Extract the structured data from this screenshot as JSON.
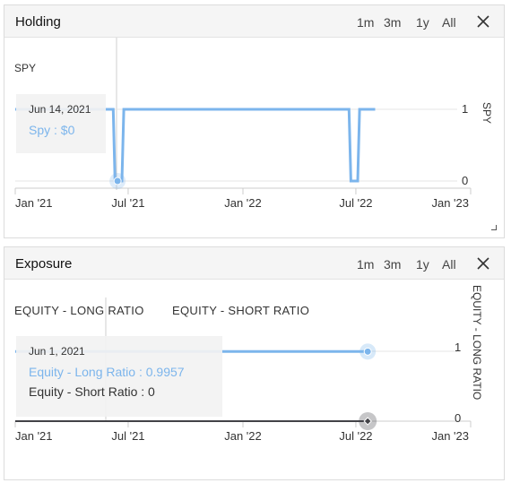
{
  "holding": {
    "title": "Holding",
    "ranges": [
      "1m",
      "3m",
      "1y",
      "All"
    ],
    "series_label": "SPY",
    "y_axis_title": "SPY",
    "tooltip": {
      "date": "Jun 14, 2021",
      "line": "Spy : $0"
    },
    "colors": {
      "series": "#7cb5ec"
    }
  },
  "exposure": {
    "title": "Exposure",
    "ranges": [
      "1m",
      "3m",
      "1y",
      "All"
    ],
    "legend": [
      "EQUITY - LONG RATIO",
      "EQUITY - SHORT RATIO"
    ],
    "y_axis_title": "EQUITY - LONG RATIO",
    "tooltip": {
      "date": "Jun 1, 2021",
      "lines": [
        "Equity - Long Ratio : 0.9957",
        "Equity - Short Ratio : 0"
      ]
    },
    "colors": {
      "long": "#7cb5ec",
      "short": "#434348"
    }
  },
  "chart_data": [
    {
      "type": "line",
      "x_tick_labels": [
        "Jan '21",
        "Jul '21",
        "Jan '22",
        "Jul '22",
        "Jan '23"
      ],
      "x_ticks": [
        "2021-01-01",
        "2021-07-01",
        "2022-01-01",
        "2022-07-01",
        "2023-01-01"
      ],
      "xlim": [
        "2021-01-01",
        "2023-01-01"
      ],
      "y_tick_labels": [
        "0",
        "1"
      ],
      "ylim": [
        0,
        1
      ],
      "series": [
        {
          "name": "SPY",
          "x": [
            "2021-01-01",
            "2021-06-07",
            "2021-06-10",
            "2021-06-14",
            "2021-06-21",
            "2021-06-24",
            "2022-06-20",
            "2022-06-23",
            "2022-07-04",
            "2022-07-07",
            "2022-08-01"
          ],
          "values": [
            1,
            1,
            0,
            0,
            0,
            1,
            1,
            0,
            0,
            1,
            1
          ]
        }
      ],
      "highlight": {
        "x": "2021-06-14",
        "y": 0
      }
    },
    {
      "type": "line",
      "x_tick_labels": [
        "Jan '21",
        "Jul '21",
        "Jan '22",
        "Jul '22",
        "Jan '23"
      ],
      "x_ticks": [
        "2021-01-01",
        "2021-07-01",
        "2022-01-01",
        "2022-07-01",
        "2023-01-01"
      ],
      "xlim": [
        "2021-01-01",
        "2023-01-01"
      ],
      "y_tick_labels": [
        "0",
        "1"
      ],
      "ylim": [
        0,
        1
      ],
      "series": [
        {
          "name": "EQUITY - LONG RATIO",
          "x": [
            "2021-01-01",
            "2022-07-20"
          ],
          "values": [
            0.9957,
            0.9957
          ]
        },
        {
          "name": "EQUITY - SHORT RATIO",
          "x": [
            "2021-01-01",
            "2022-07-20"
          ],
          "values": [
            0,
            0
          ]
        }
      ],
      "highlight": {
        "x": "2021-06-01"
      }
    }
  ]
}
